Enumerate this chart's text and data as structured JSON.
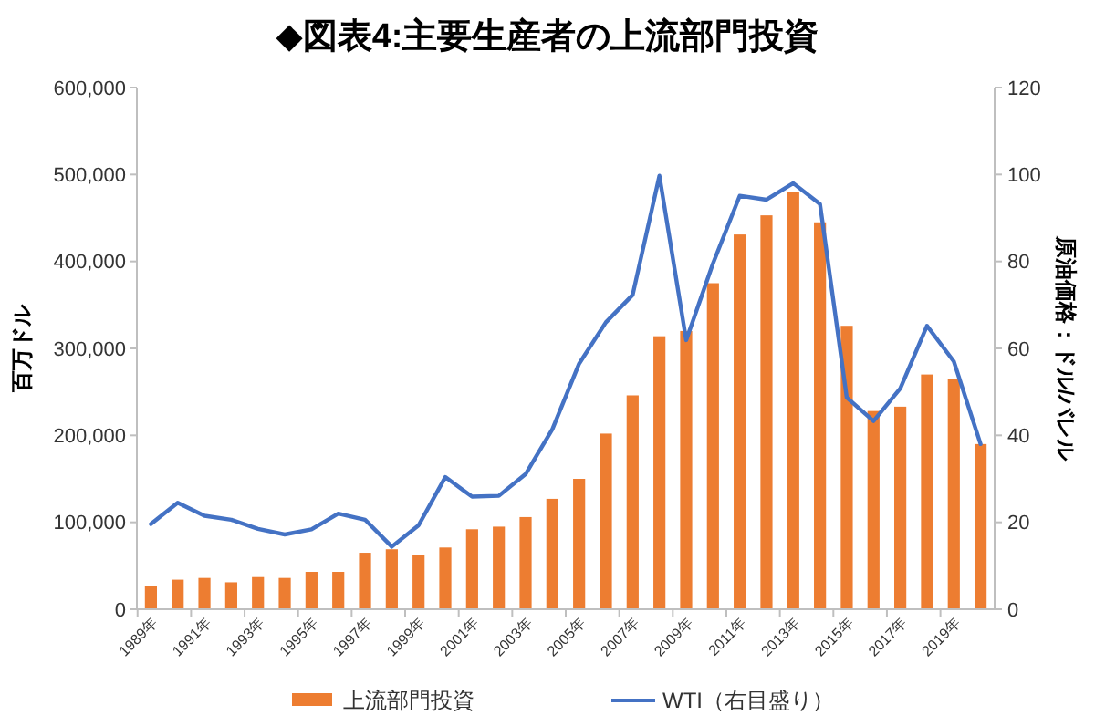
{
  "chart_data": {
    "type": "bar",
    "title": "◆図表4:主要生産者の上流部門投資",
    "ylabel": "百万ドル",
    "y2label": "原油価格：ドル/バレル",
    "categories": [
      "1989年",
      null,
      "1991年",
      null,
      "1993年",
      null,
      "1995年",
      null,
      "1997年",
      null,
      "1999年",
      null,
      "2001年",
      null,
      "2003年",
      null,
      "2005年",
      null,
      "2007年",
      null,
      "2009年",
      null,
      "2011年",
      null,
      "2013年",
      null,
      "2015年",
      null,
      "2017年",
      null,
      "2019年",
      null
    ],
    "series": [
      {
        "name": "上流部門投資",
        "type": "bar",
        "color": "#ed7d31",
        "values": [
          27000,
          34000,
          36000,
          31000,
          37000,
          36000,
          43000,
          43000,
          65000,
          69000,
          62000,
          71000,
          92000,
          95000,
          106000,
          127000,
          150000,
          202000,
          246000,
          314000,
          320000,
          375000,
          431000,
          453000,
          480000,
          445000,
          326000,
          228000,
          233000,
          270000,
          265000,
          190000
        ]
      },
      {
        "name": "WTI（右目盛り）",
        "type": "line",
        "axis": "y2",
        "color": "#4472c4",
        "values": [
          19.6,
          24.5,
          21.5,
          20.6,
          18.5,
          17.2,
          18.4,
          22,
          20.6,
          14.4,
          19.3,
          30.4,
          25.9,
          26.1,
          31.1,
          41.4,
          56.5,
          66,
          72.3,
          99.7,
          61.9,
          79.5,
          95.1,
          94.2,
          98,
          93.2,
          48.7,
          43.3,
          50.8,
          65.2,
          57,
          38
        ]
      }
    ],
    "ylim": [
      0,
      600000
    ],
    "yticks": [
      {
        "value": 0,
        "label": "0"
      },
      {
        "value": 100000,
        "label": "100,000"
      },
      {
        "value": 200000,
        "label": "200,000"
      },
      {
        "value": 300000,
        "label": "300,000"
      },
      {
        "value": 400000,
        "label": "400,000"
      },
      {
        "value": 500000,
        "label": "500,000"
      },
      {
        "value": 600000,
        "label": "600,000"
      }
    ],
    "y2lim": [
      0,
      120
    ],
    "y2ticks": [
      0,
      20,
      40,
      60,
      80,
      100,
      120
    ],
    "legend": "bottom",
    "marker": "none",
    "line_style": "solid",
    "grid": false
  }
}
